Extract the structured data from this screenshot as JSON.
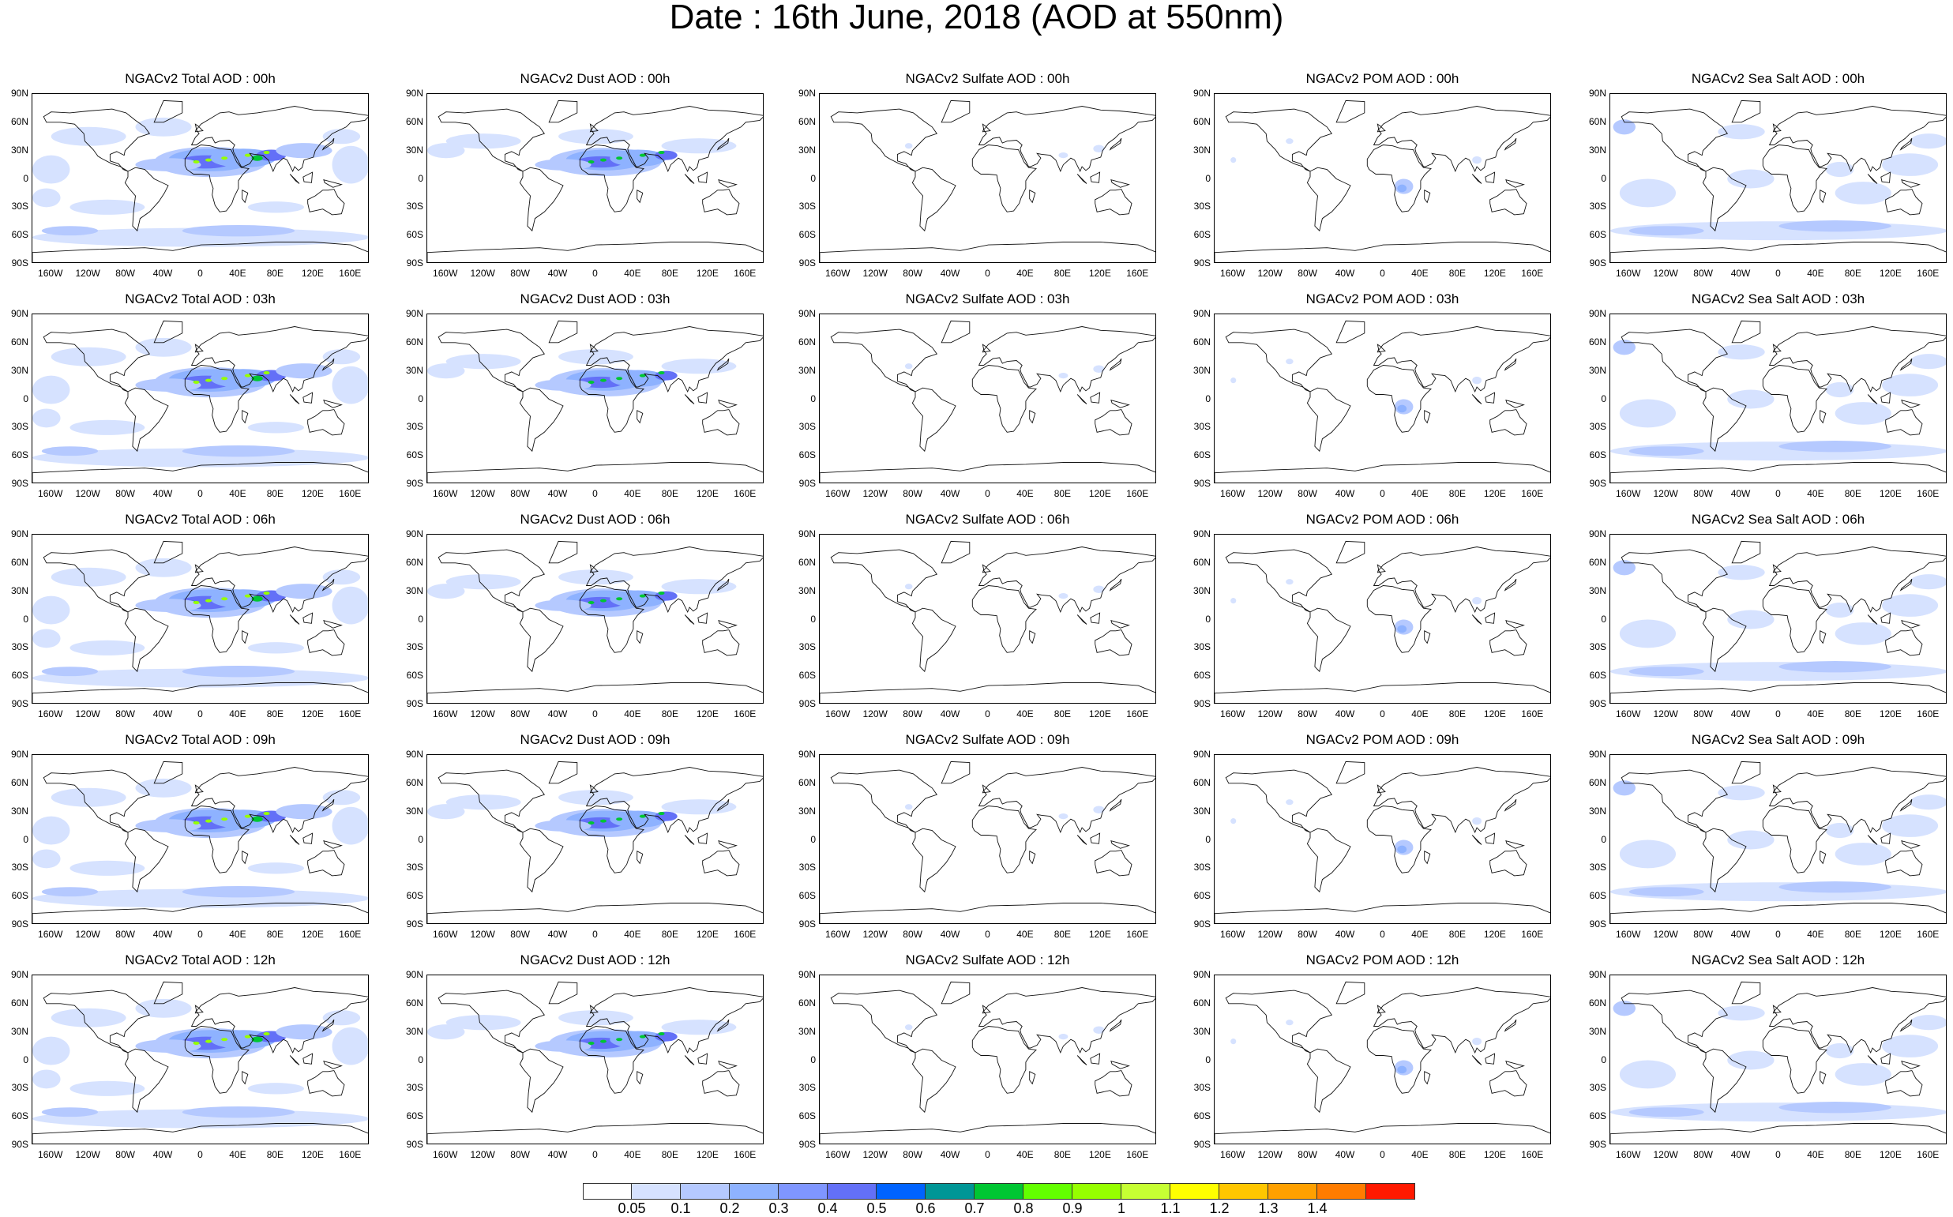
{
  "title": "Date : 16th June, 2018 (AOD at 550nm)",
  "panels": [
    {
      "title": "NGACv2 Total AOD : 00h",
      "species": "total"
    },
    {
      "title": "NGACv2 Dust AOD : 00h",
      "species": "dust"
    },
    {
      "title": "NGACv2 Sulfate AOD : 00h",
      "species": "sulfate"
    },
    {
      "title": "NGACv2 POM AOD : 00h",
      "species": "pom"
    },
    {
      "title": "NGACv2 Sea Salt AOD : 00h",
      "species": "seasalt"
    },
    {
      "title": "NGACv2 Total AOD : 03h",
      "species": "total"
    },
    {
      "title": "NGACv2 Dust AOD : 03h",
      "species": "dust"
    },
    {
      "title": "NGACv2 Sulfate AOD : 03h",
      "species": "sulfate"
    },
    {
      "title": "NGACv2 POM AOD : 03h",
      "species": "pom"
    },
    {
      "title": "NGACv2 Sea Salt AOD : 03h",
      "species": "seasalt"
    },
    {
      "title": "NGACv2 Total AOD : 06h",
      "species": "total"
    },
    {
      "title": "NGACv2 Dust AOD : 06h",
      "species": "dust"
    },
    {
      "title": "NGACv2 Sulfate AOD : 06h",
      "species": "sulfate"
    },
    {
      "title": "NGACv2 POM AOD : 06h",
      "species": "pom"
    },
    {
      "title": "NGACv2 Sea Salt AOD : 06h",
      "species": "seasalt"
    },
    {
      "title": "NGACv2 Total AOD : 09h",
      "species": "total"
    },
    {
      "title": "NGACv2 Dust AOD : 09h",
      "species": "dust"
    },
    {
      "title": "NGACv2 Sulfate AOD : 09h",
      "species": "sulfate"
    },
    {
      "title": "NGACv2 POM AOD : 09h",
      "species": "pom"
    },
    {
      "title": "NGACv2 Sea Salt  AOD : 09h",
      "species": "seasalt"
    },
    {
      "title": "NGACv2 Total AOD : 12h",
      "species": "total"
    },
    {
      "title": "NGACv2 Dust AOD : 12h",
      "species": "dust"
    },
    {
      "title": "NGACv2 Sulfate AOD : 12h",
      "species": "sulfate"
    },
    {
      "title": "NGACv2 POM  AOD : 12h",
      "species": "pom"
    },
    {
      "title": "NGACv2 Sea Salt AOD : 12h",
      "species": "seasalt"
    }
  ],
  "lat_labels": [
    "90N",
    "60N",
    "30N",
    "0",
    "30S",
    "60S",
    "90S"
  ],
  "lon_labels": [
    "160W",
    "120W",
    "80W",
    "40W",
    "0",
    "40E",
    "80E",
    "120E",
    "160E"
  ],
  "colorbar": {
    "colors": [
      "#ffffff",
      "#d6e2ff",
      "#b5c9ff",
      "#8eb2ff",
      "#7f96ff",
      "#6370f7",
      "#0063ff",
      "#009696",
      "#00c633",
      "#63ff00",
      "#96ff00",
      "#c6ff33",
      "#ffff00",
      "#ffc600",
      "#ffa000",
      "#ff7c00",
      "#ff1900"
    ],
    "labels": [
      "0.05",
      "0.1",
      "0.2",
      "0.3",
      "0.4",
      "0.5",
      "0.6",
      "0.7",
      "0.8",
      "0.9",
      "1",
      "1.1",
      "1.2",
      "1.3",
      "1.4"
    ]
  }
}
